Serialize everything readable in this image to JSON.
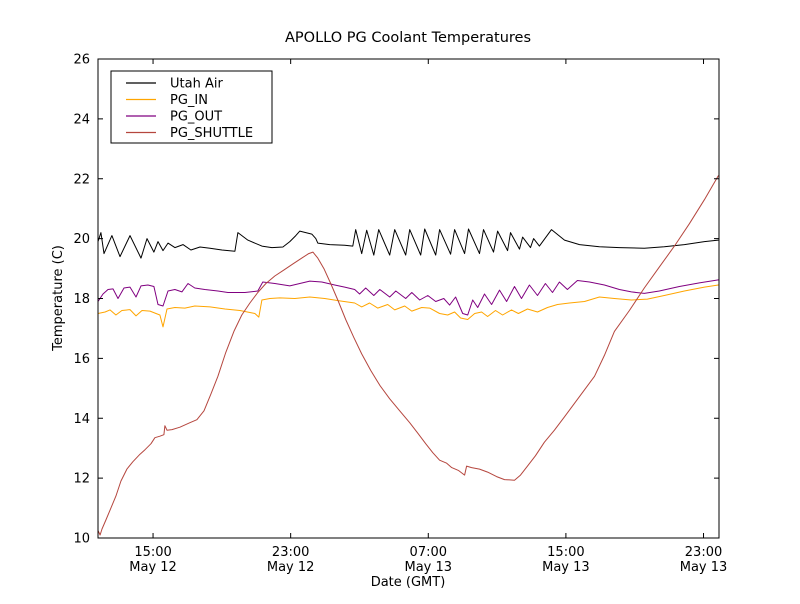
{
  "chart_data": {
    "type": "line",
    "title": "APOLLO PG Coolant Temperatures",
    "xlabel": "Date (GMT)",
    "ylabel": "Temperature (C)",
    "background_color": "#ffffff",
    "axes_frame_color": "#000000",
    "grid": false,
    "legend_position": "upper-left",
    "xlim": [
      11.8,
      47.9
    ],
    "ylim": [
      10,
      26
    ],
    "x_axis_unit": "hours since May 12 00:00 GMT",
    "x_tick_values": [
      15,
      23,
      31,
      39,
      47
    ],
    "x_tick_labels": [
      [
        "15:00",
        "May 12"
      ],
      [
        "23:00",
        "May 12"
      ],
      [
        "07:00",
        "May 13"
      ],
      [
        "15:00",
        "May 13"
      ],
      [
        "23:00",
        "May 13"
      ]
    ],
    "y_tick_values": [
      10,
      12,
      14,
      16,
      18,
      20,
      22,
      24,
      26
    ],
    "y_tick_labels": [
      "10",
      "12",
      "14",
      "16",
      "18",
      "20",
      "22",
      "24",
      "26"
    ],
    "series": [
      {
        "name": "Utah Air",
        "color": "#000000",
        "points": [
          [
            11.8,
            19.9
          ],
          [
            11.97,
            20.2
          ],
          [
            12.15,
            19.5
          ],
          [
            12.61,
            20.1
          ],
          [
            13.08,
            19.4
          ],
          [
            13.66,
            20.1
          ],
          [
            14.3,
            19.35
          ],
          [
            14.65,
            20.0
          ],
          [
            15.05,
            19.55
          ],
          [
            15.29,
            19.9
          ],
          [
            15.58,
            19.6
          ],
          [
            15.87,
            19.85
          ],
          [
            16.27,
            19.7
          ],
          [
            16.74,
            19.8
          ],
          [
            17.2,
            19.62
          ],
          [
            17.73,
            19.72
          ],
          [
            18.31,
            19.68
          ],
          [
            19.0,
            19.62
          ],
          [
            19.76,
            19.58
          ],
          [
            19.93,
            20.2
          ],
          [
            20.51,
            19.95
          ],
          [
            21.33,
            19.75
          ],
          [
            21.91,
            19.7
          ],
          [
            22.55,
            19.72
          ],
          [
            22.95,
            19.9
          ],
          [
            23.3,
            20.1
          ],
          [
            23.53,
            20.25
          ],
          [
            23.88,
            20.2
          ],
          [
            24.23,
            20.15
          ],
          [
            24.46,
            20.0
          ],
          [
            24.58,
            19.85
          ],
          [
            25.27,
            19.8
          ],
          [
            26.14,
            19.78
          ],
          [
            26.61,
            19.75
          ],
          [
            26.78,
            20.3
          ],
          [
            27.13,
            19.5
          ],
          [
            27.42,
            20.28
          ],
          [
            27.83,
            19.45
          ],
          [
            28.12,
            20.3
          ],
          [
            28.76,
            19.45
          ],
          [
            29.05,
            20.3
          ],
          [
            29.69,
            19.45
          ],
          [
            29.92,
            20.3
          ],
          [
            30.56,
            19.45
          ],
          [
            30.79,
            20.32
          ],
          [
            31.43,
            19.45
          ],
          [
            31.66,
            20.3
          ],
          [
            32.3,
            19.48
          ],
          [
            32.53,
            20.3
          ],
          [
            33.11,
            19.5
          ],
          [
            33.34,
            20.32
          ],
          [
            33.98,
            19.5
          ],
          [
            34.21,
            20.3
          ],
          [
            34.79,
            19.55
          ],
          [
            35.03,
            20.25
          ],
          [
            35.61,
            19.6
          ],
          [
            35.78,
            20.2
          ],
          [
            36.3,
            19.65
          ],
          [
            36.48,
            20.05
          ],
          [
            36.94,
            19.7
          ],
          [
            37.12,
            20.0
          ],
          [
            37.46,
            19.75
          ],
          [
            38.16,
            20.3
          ],
          [
            38.92,
            19.95
          ],
          [
            39.79,
            19.8
          ],
          [
            40.95,
            19.73
          ],
          [
            42.11,
            19.7
          ],
          [
            43.56,
            19.68
          ],
          [
            44.72,
            19.73
          ],
          [
            45.89,
            19.8
          ],
          [
            47.05,
            19.9
          ],
          [
            47.86,
            19.95
          ]
        ]
      },
      {
        "name": "PG_IN",
        "color": "#ffa500",
        "points": [
          [
            11.8,
            17.5
          ],
          [
            12.21,
            17.55
          ],
          [
            12.5,
            17.62
          ],
          [
            12.84,
            17.45
          ],
          [
            13.19,
            17.6
          ],
          [
            13.66,
            17.63
          ],
          [
            14.01,
            17.42
          ],
          [
            14.36,
            17.6
          ],
          [
            14.82,
            17.58
          ],
          [
            15.17,
            17.5
          ],
          [
            15.4,
            17.45
          ],
          [
            15.58,
            17.05
          ],
          [
            15.81,
            17.65
          ],
          [
            16.27,
            17.7
          ],
          [
            16.85,
            17.68
          ],
          [
            17.43,
            17.75
          ],
          [
            18.31,
            17.72
          ],
          [
            19.18,
            17.65
          ],
          [
            20.05,
            17.6
          ],
          [
            20.92,
            17.5
          ],
          [
            21.15,
            17.38
          ],
          [
            21.33,
            17.95
          ],
          [
            21.79,
            18.0
          ],
          [
            22.37,
            18.02
          ],
          [
            23.24,
            18.0
          ],
          [
            24.11,
            18.05
          ],
          [
            24.98,
            18.0
          ],
          [
            25.85,
            17.92
          ],
          [
            26.72,
            17.85
          ],
          [
            27.13,
            17.72
          ],
          [
            27.59,
            17.85
          ],
          [
            28.06,
            17.68
          ],
          [
            28.64,
            17.8
          ],
          [
            29.05,
            17.62
          ],
          [
            29.63,
            17.75
          ],
          [
            30.04,
            17.58
          ],
          [
            30.62,
            17.7
          ],
          [
            31.08,
            17.68
          ],
          [
            31.66,
            17.5
          ],
          [
            32.13,
            17.45
          ],
          [
            32.53,
            17.55
          ],
          [
            32.88,
            17.35
          ],
          [
            33.29,
            17.3
          ],
          [
            33.7,
            17.5
          ],
          [
            34.1,
            17.55
          ],
          [
            34.45,
            17.4
          ],
          [
            34.91,
            17.6
          ],
          [
            35.32,
            17.45
          ],
          [
            35.84,
            17.62
          ],
          [
            36.24,
            17.5
          ],
          [
            36.77,
            17.65
          ],
          [
            37.35,
            17.55
          ],
          [
            37.93,
            17.7
          ],
          [
            38.51,
            17.8
          ],
          [
            39.21,
            17.85
          ],
          [
            40.08,
            17.9
          ],
          [
            40.95,
            18.05
          ],
          [
            41.82,
            18.0
          ],
          [
            42.81,
            17.95
          ],
          [
            43.74,
            17.98
          ],
          [
            44.72,
            18.1
          ],
          [
            45.89,
            18.25
          ],
          [
            47.05,
            18.38
          ],
          [
            47.86,
            18.45
          ]
        ]
      },
      {
        "name": "PG_OUT",
        "color": "#800080",
        "points": [
          [
            11.8,
            17.9
          ],
          [
            12.09,
            18.15
          ],
          [
            12.38,
            18.3
          ],
          [
            12.67,
            18.32
          ],
          [
            12.96,
            18.0
          ],
          [
            13.31,
            18.35
          ],
          [
            13.66,
            18.38
          ],
          [
            14.01,
            18.05
          ],
          [
            14.3,
            18.42
          ],
          [
            14.7,
            18.45
          ],
          [
            15.05,
            18.4
          ],
          [
            15.29,
            17.8
          ],
          [
            15.58,
            17.75
          ],
          [
            15.87,
            18.25
          ],
          [
            16.27,
            18.3
          ],
          [
            16.68,
            18.22
          ],
          [
            17.03,
            18.5
          ],
          [
            17.43,
            18.35
          ],
          [
            18.01,
            18.3
          ],
          [
            18.77,
            18.25
          ],
          [
            19.35,
            18.2
          ],
          [
            20.34,
            18.2
          ],
          [
            21.09,
            18.25
          ],
          [
            21.38,
            18.55
          ],
          [
            22.08,
            18.5
          ],
          [
            22.95,
            18.42
          ],
          [
            23.53,
            18.5
          ],
          [
            24.11,
            18.58
          ],
          [
            24.81,
            18.55
          ],
          [
            25.56,
            18.45
          ],
          [
            26.14,
            18.38
          ],
          [
            26.72,
            18.3
          ],
          [
            27.01,
            18.15
          ],
          [
            27.36,
            18.35
          ],
          [
            27.83,
            18.1
          ],
          [
            28.18,
            18.3
          ],
          [
            28.76,
            18.05
          ],
          [
            29.11,
            18.25
          ],
          [
            29.69,
            18.0
          ],
          [
            30.04,
            18.2
          ],
          [
            30.5,
            17.95
          ],
          [
            30.97,
            18.1
          ],
          [
            31.43,
            17.9
          ],
          [
            31.9,
            18.0
          ],
          [
            32.24,
            17.78
          ],
          [
            32.59,
            18.05
          ],
          [
            33.0,
            17.5
          ],
          [
            33.29,
            17.45
          ],
          [
            33.58,
            17.95
          ],
          [
            33.87,
            17.7
          ],
          [
            34.27,
            18.15
          ],
          [
            34.68,
            17.8
          ],
          [
            35.14,
            18.28
          ],
          [
            35.55,
            17.9
          ],
          [
            36.01,
            18.4
          ],
          [
            36.42,
            18.0
          ],
          [
            36.88,
            18.45
          ],
          [
            37.35,
            18.1
          ],
          [
            37.81,
            18.5
          ],
          [
            38.22,
            18.2
          ],
          [
            38.62,
            18.55
          ],
          [
            39.09,
            18.3
          ],
          [
            39.67,
            18.6
          ],
          [
            40.37,
            18.55
          ],
          [
            41.24,
            18.45
          ],
          [
            42.11,
            18.3
          ],
          [
            42.81,
            18.22
          ],
          [
            43.56,
            18.17
          ],
          [
            44.43,
            18.25
          ],
          [
            45.6,
            18.4
          ],
          [
            46.76,
            18.52
          ],
          [
            47.86,
            18.62
          ]
        ]
      },
      {
        "name": "PG_SHUTTLE",
        "color": "#b5463e",
        "points": [
          [
            11.8,
            10.25
          ],
          [
            11.92,
            10.1
          ],
          [
            12.03,
            10.3
          ],
          [
            12.26,
            10.6
          ],
          [
            12.55,
            11.0
          ],
          [
            12.84,
            11.4
          ],
          [
            13.13,
            11.9
          ],
          [
            13.48,
            12.3
          ],
          [
            13.83,
            12.55
          ],
          [
            14.24,
            12.8
          ],
          [
            14.53,
            12.95
          ],
          [
            14.88,
            13.15
          ],
          [
            15.11,
            13.35
          ],
          [
            15.4,
            13.4
          ],
          [
            15.63,
            13.45
          ],
          [
            15.69,
            13.75
          ],
          [
            15.81,
            13.6
          ],
          [
            16.1,
            13.62
          ],
          [
            16.56,
            13.7
          ],
          [
            17.14,
            13.85
          ],
          [
            17.55,
            13.95
          ],
          [
            17.96,
            14.25
          ],
          [
            18.36,
            14.8
          ],
          [
            18.77,
            15.4
          ],
          [
            19.23,
            16.2
          ],
          [
            19.7,
            16.9
          ],
          [
            20.16,
            17.45
          ],
          [
            20.63,
            17.85
          ],
          [
            21.09,
            18.2
          ],
          [
            21.56,
            18.5
          ],
          [
            22.08,
            18.75
          ],
          [
            22.6,
            18.95
          ],
          [
            23.12,
            19.15
          ],
          [
            23.65,
            19.35
          ],
          [
            24.05,
            19.5
          ],
          [
            24.29,
            19.55
          ],
          [
            24.58,
            19.35
          ],
          [
            24.93,
            19.0
          ],
          [
            25.33,
            18.5
          ],
          [
            25.74,
            17.95
          ],
          [
            26.2,
            17.3
          ],
          [
            26.67,
            16.7
          ],
          [
            27.13,
            16.15
          ],
          [
            27.65,
            15.6
          ],
          [
            28.18,
            15.1
          ],
          [
            28.76,
            14.65
          ],
          [
            29.34,
            14.25
          ],
          [
            29.92,
            13.85
          ],
          [
            30.39,
            13.5
          ],
          [
            30.85,
            13.15
          ],
          [
            31.26,
            12.85
          ],
          [
            31.66,
            12.6
          ],
          [
            32.07,
            12.5
          ],
          [
            32.36,
            12.35
          ],
          [
            32.77,
            12.25
          ],
          [
            33.11,
            12.1
          ],
          [
            33.23,
            12.4
          ],
          [
            33.52,
            12.35
          ],
          [
            33.98,
            12.3
          ],
          [
            34.45,
            12.2
          ],
          [
            34.97,
            12.05
          ],
          [
            35.43,
            11.95
          ],
          [
            36.01,
            11.93
          ],
          [
            36.36,
            12.1
          ],
          [
            36.77,
            12.4
          ],
          [
            37.23,
            12.75
          ],
          [
            37.75,
            13.2
          ],
          [
            38.33,
            13.6
          ],
          [
            38.92,
            14.05
          ],
          [
            39.5,
            14.5
          ],
          [
            40.08,
            14.95
          ],
          [
            40.66,
            15.4
          ],
          [
            41.24,
            16.1
          ],
          [
            41.82,
            16.9
          ],
          [
            42.69,
            17.6
          ],
          [
            43.56,
            18.35
          ],
          [
            44.43,
            19.05
          ],
          [
            45.31,
            19.75
          ],
          [
            46.18,
            20.5
          ],
          [
            47.05,
            21.3
          ],
          [
            47.86,
            22.1
          ]
        ]
      }
    ],
    "legend_entries": [
      "Utah Air",
      "PG_IN",
      "PG_OUT",
      "PG_SHUTTLE"
    ]
  }
}
